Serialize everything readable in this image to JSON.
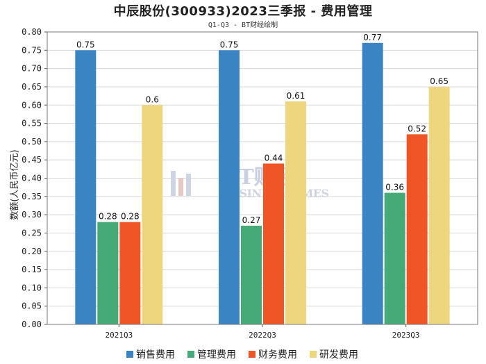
{
  "chart_data": {
    "type": "bar",
    "title": "中辰股份(300933)2023三季报 - 费用管理",
    "subtitle": "Q1-Q3 - BT财经绘制",
    "xlabel": "",
    "ylabel": "数额(人民币亿元)",
    "categories": [
      "2021Q3",
      "2022Q3",
      "2023Q3"
    ],
    "ylim": [
      0,
      0.8
    ],
    "ytick_step": 0.05,
    "series": [
      {
        "name": "销售费用",
        "color": "#3a84c4",
        "values": [
          0.75,
          0.75,
          0.77
        ],
        "labels": [
          "0.75",
          "0.75",
          "0.77"
        ]
      },
      {
        "name": "管理费用",
        "color": "#45aa77",
        "values": [
          0.28,
          0.27,
          0.36
        ],
        "labels": [
          "0.28",
          "0.27",
          "0.36"
        ]
      },
      {
        "name": "财务费用",
        "color": "#ef5525",
        "values": [
          0.28,
          0.44,
          0.52
        ],
        "labels": [
          "0.28",
          "0.44",
          "0.52"
        ]
      },
      {
        "name": "研发费用",
        "color": "#eed67e",
        "values": [
          0.6,
          0.61,
          0.65
        ],
        "labels": [
          "0.6",
          "0.61",
          "0.65"
        ]
      }
    ],
    "grid": true,
    "legend_position": "bottom",
    "watermark": {
      "main": "BT财经",
      "sub": "BUSINESS TIMES"
    }
  }
}
